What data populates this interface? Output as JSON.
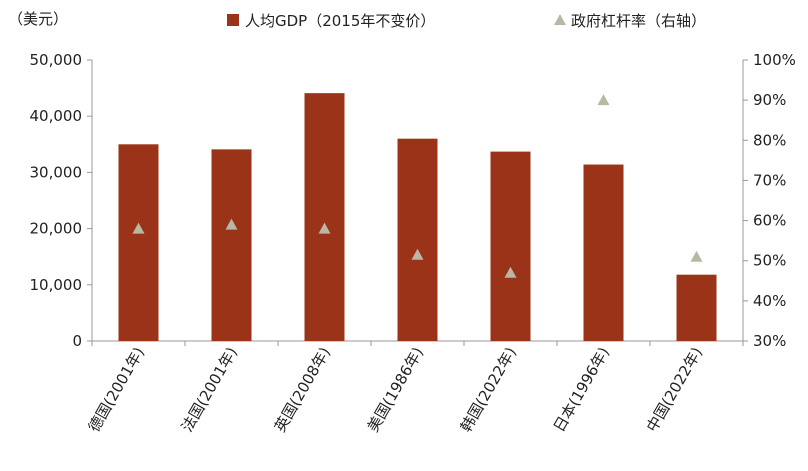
{
  "chart_data": {
    "type": "bar",
    "title": "",
    "left_unit": "（美元）",
    "categories": [
      "德国(2001年)",
      "法国(2001年)",
      "英国(2008年)",
      "美国(1986年)",
      "韩国(2022年)",
      "日本(1996年)",
      "中国(2022年)"
    ],
    "series": [
      {
        "name": "人均GDP（2015年不变价）",
        "type": "bar",
        "axis": "left",
        "color": "#9B3318",
        "values": [
          35000,
          34100,
          44100,
          36000,
          33700,
          31400,
          11800
        ]
      },
      {
        "name": "政府杠杆率（右轴）",
        "type": "scatter",
        "axis": "right",
        "marker": "triangle",
        "color": "#B8B8A4",
        "values": [
          58,
          59,
          58,
          51.5,
          47,
          90,
          51
        ]
      }
    ],
    "y_left": {
      "min": 0,
      "max": 50000,
      "ticks": [
        0,
        10000,
        20000,
        30000,
        40000,
        50000
      ],
      "tick_labels": [
        "0",
        "10,000",
        "20,000",
        "30,000",
        "40,000",
        "50,000"
      ]
    },
    "y_right": {
      "min": 30,
      "max": 100,
      "ticks": [
        30,
        40,
        50,
        60,
        70,
        80,
        90,
        100
      ],
      "tick_labels": [
        "30%",
        "40%",
        "50%",
        "60%",
        "70%",
        "80%",
        "90%",
        "100%"
      ]
    },
    "grid": false,
    "legend_position": "top"
  }
}
